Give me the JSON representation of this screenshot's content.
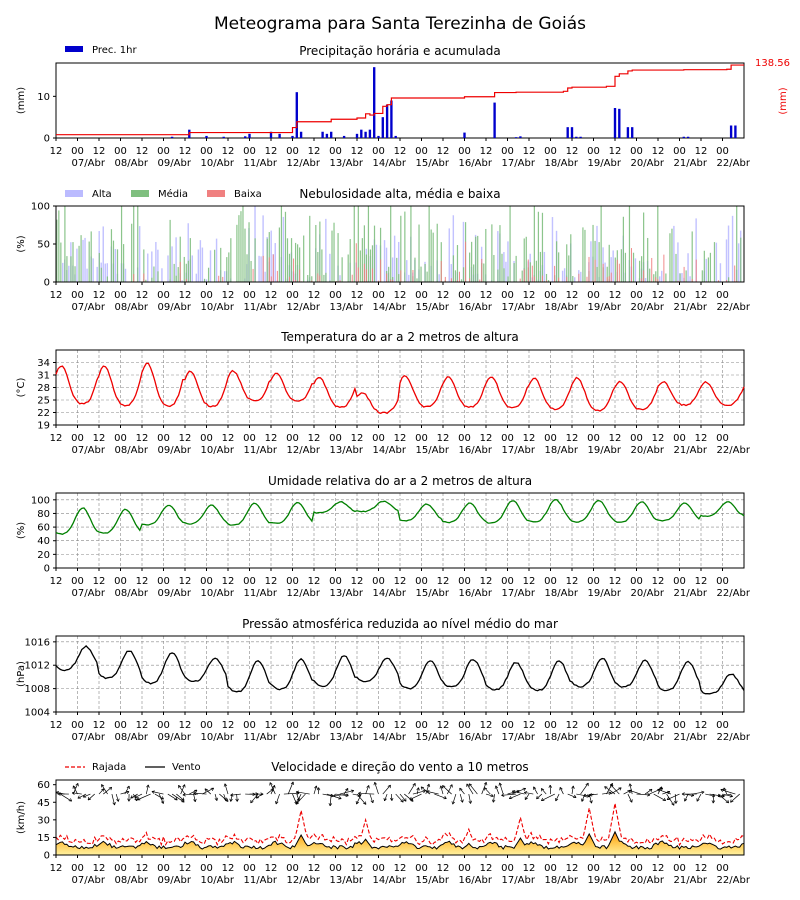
{
  "title": "Meteograma para Santa Terezinha de Goiás",
  "x_ticks": {
    "hour_labels": [
      "12",
      "00",
      "12",
      "00",
      "12",
      "00",
      "12",
      "00",
      "12",
      "00",
      "12",
      "00",
      "12",
      "00",
      "12",
      "00",
      "12",
      "00",
      "12",
      "00",
      "12",
      "00",
      "12",
      "00",
      "12",
      "00",
      "12",
      "00",
      "12",
      "00",
      "12",
      "00"
    ],
    "date_labels": [
      "07/Abr",
      "08/Abr",
      "09/Abr",
      "10/Abr",
      "11/Abr",
      "12/Abr",
      "13/Abr",
      "14/Abr",
      "15/Abr",
      "16/Abr",
      "17/Abr",
      "18/Abr",
      "19/Abr",
      "20/Abr",
      "21/Abr",
      "22/Abr"
    ]
  },
  "chart_data": [
    {
      "type": "bar",
      "title": "Precipitação horária e acumulada",
      "ylabel": "(mm)",
      "ylabel_right": "(mm)",
      "ylim": [
        0,
        18
      ],
      "yticks": [
        0,
        10
      ],
      "legend": [
        {
          "name": "Prec. 1hr",
          "color": "#0000cc"
        }
      ],
      "accumulated_total_label": "138.56",
      "bars": [
        [
          27,
          0.3
        ],
        [
          31,
          2
        ],
        [
          35,
          0.5
        ],
        [
          39,
          0.3
        ],
        [
          44,
          0.4
        ],
        [
          45,
          1
        ],
        [
          50,
          1.5
        ],
        [
          52,
          1
        ],
        [
          55,
          0.5
        ],
        [
          56,
          11
        ],
        [
          57,
          1.5
        ],
        [
          62,
          1.5
        ],
        [
          63,
          1
        ],
        [
          64,
          1.5
        ],
        [
          67,
          0.5
        ],
        [
          70,
          1
        ],
        [
          71,
          2
        ],
        [
          72,
          1.5
        ],
        [
          73,
          2
        ],
        [
          74,
          17
        ],
        [
          75,
          0.5
        ],
        [
          76,
          5
        ],
        [
          77,
          8
        ],
        [
          78,
          9
        ],
        [
          79,
          0.5
        ],
        [
          95,
          1.3
        ],
        [
          102,
          8.5
        ],
        [
          107,
          0.2
        ],
        [
          108,
          0.4
        ],
        [
          119,
          2.6
        ],
        [
          120,
          2.6
        ],
        [
          121,
          0.3
        ],
        [
          122,
          0.3
        ],
        [
          130,
          7.2
        ],
        [
          131,
          7
        ],
        [
          133,
          2.6
        ],
        [
          134,
          2.6
        ],
        [
          146,
          0.3
        ],
        [
          147,
          0.3
        ],
        [
          157,
          3
        ],
        [
          158,
          3
        ]
      ],
      "accumulated": [
        [
          0,
          0.8
        ],
        [
          27,
          0.8
        ],
        [
          31,
          1.3
        ],
        [
          44,
          1.3
        ],
        [
          55,
          2.5
        ],
        [
          56,
          3.9
        ],
        [
          63,
          3.9
        ],
        [
          64,
          4.5
        ],
        [
          70,
          4.8
        ],
        [
          72,
          5.8
        ],
        [
          73,
          5.5
        ],
        [
          74,
          5.9
        ],
        [
          76,
          7.6
        ],
        [
          77,
          8
        ],
        [
          78,
          9.6
        ],
        [
          94,
          9.6
        ],
        [
          95,
          9.9
        ],
        [
          101,
          9.9
        ],
        [
          102,
          10.9
        ],
        [
          107,
          11
        ],
        [
          118,
          11.2
        ],
        [
          119,
          12
        ],
        [
          120,
          12.2
        ],
        [
          128,
          12.4
        ],
        [
          130,
          14.8
        ],
        [
          131,
          15.4
        ],
        [
          133,
          16.1
        ],
        [
          134,
          16.3
        ],
        [
          145,
          16.3
        ],
        [
          146,
          16.4
        ],
        [
          156,
          16.5
        ],
        [
          157,
          17.5
        ],
        [
          160,
          17.5
        ]
      ],
      "accumulated_color": "#ee0000"
    },
    {
      "type": "bar",
      "title": "Nebulosidade alta, média e baixa",
      "ylabel": "(%)",
      "ylim": [
        0,
        100
      ],
      "yticks": [
        0,
        50,
        100
      ],
      "series": [
        {
          "name": "Alta",
          "color": "#bbbbff"
        },
        {
          "name": "Média",
          "color": "#7fbf7f"
        },
        {
          "name": "Baixa",
          "color": "#f08080"
        }
      ]
    },
    {
      "type": "line",
      "title": "Temperatura do ar a 2 metros de altura",
      "ylabel": "(°C)",
      "ylim": [
        19,
        37
      ],
      "yticks": [
        19,
        22,
        25,
        28,
        31,
        34
      ],
      "color": "#ee0000",
      "series_daily": {
        "max": [
          33.2,
          33.1,
          33.8,
          31.9,
          32.0,
          31.4,
          30.5,
          26.8,
          30.8,
          30.5,
          30.6,
          30.2,
          30.3,
          29.4,
          29.4,
          29.3
        ],
        "min": [
          22.5,
          22.0,
          21.8,
          22.0,
          23.5,
          23.5,
          22.0,
          21.0,
          22.0,
          22.0,
          21.8,
          21.5,
          21.0,
          21.5,
          22.8,
          22.8
        ]
      }
    },
    {
      "type": "line",
      "title": "Umidade relativa do ar a 2 metros de altura",
      "ylabel": "(%)",
      "ylim": [
        0,
        110
      ],
      "yticks": [
        0,
        20,
        40,
        60,
        80,
        100
      ],
      "color": "#008000",
      "series_daily": {
        "max": [
          88,
          86,
          92,
          92,
          95,
          96,
          97,
          98,
          94,
          95,
          99,
          100,
          99,
          97,
          95,
          97
        ],
        "min": [
          43,
          45,
          58,
          60,
          57,
          60,
          78,
          80,
          65,
          62,
          60,
          62,
          62,
          62,
          65,
          72
        ]
      }
    },
    {
      "type": "line",
      "title": "Pressão atmosférica reduzida ao nível médio do mar",
      "ylabel": "(hPa)",
      "ylim": [
        1004,
        1017
      ],
      "yticks": [
        1004,
        1008,
        1012,
        1016
      ],
      "color": "#000000",
      "series_daily": {
        "max": [
          1015.2,
          1014.5,
          1014.2,
          1013.2,
          1012.8,
          1013.0,
          1013.6,
          1013.2,
          1012.8,
          1013.0,
          1012.5,
          1012.8,
          1013.2,
          1012.8,
          1012.6,
          1010.5
        ],
        "min": [
          1010.5,
          1009.0,
          1008.0,
          1008.5,
          1006.5,
          1007.0,
          1007.5,
          1008.5,
          1007.2,
          1007.5,
          1007.0,
          1006.8,
          1007.5,
          1007.5,
          1006.8,
          1006.5
        ]
      }
    },
    {
      "type": "area",
      "title": "Velocidade e direção do vento a 10 metros",
      "ylabel": "(km/h)",
      "ylim": [
        0,
        64
      ],
      "yticks": [
        0,
        15,
        30,
        45,
        60
      ],
      "series": [
        {
          "name": "Rajada",
          "color": "#ee0000",
          "style": "dashed"
        },
        {
          "name": "Vento",
          "color": "#000000",
          "style": "solid"
        }
      ],
      "gust_peaks": [
        [
          57,
          38
        ],
        [
          72,
          30
        ],
        [
          96,
          22
        ],
        [
          108,
          32
        ],
        [
          124,
          40
        ],
        [
          130,
          44
        ]
      ],
      "arrow_row_level": 52
    }
  ]
}
